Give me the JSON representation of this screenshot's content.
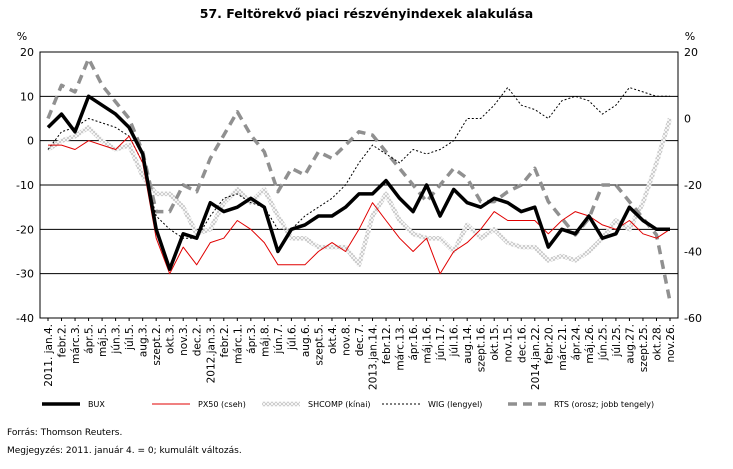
{
  "figure": {
    "title": "57. Feltörekvő piaci részvényindexek alakulása",
    "source": "Forrás: Thomson Reuters.",
    "note": "Megjegyzés: 2011. január 4. = 0; kumulált változás."
  },
  "chart_data": {
    "type": "line",
    "left_axis": {
      "unit": "%",
      "ylim": [
        -40,
        20
      ],
      "ticks": [
        20,
        10,
        0,
        -10,
        -20,
        -30,
        -40
      ]
    },
    "right_axis": {
      "unit": "%",
      "ylim": [
        -60,
        20
      ],
      "ticks": [
        20,
        0,
        -20,
        -40,
        -60
      ]
    },
    "grid": true,
    "legend_position": "bottom",
    "x_labels": [
      "2011. jan.4.",
      "febr.2.",
      "márc.3.",
      "ápr.5.",
      "máj.5.",
      "jún.3.",
      "júl.5.",
      "aug.3.",
      "szept.2.",
      "okt.3.",
      "nov.3.",
      "dec.2.",
      "2012.jan.3.",
      "febr.2.",
      "márc.1.",
      "ápr.3.",
      "máj.8.",
      "jún.7.",
      "júl.6.",
      "aug.6.",
      "szept.5.",
      "okt.4.",
      "nov.8.",
      "dec.7.",
      "2013.jan.14.",
      "febr.12.",
      "márc.13.",
      "ápr.16.",
      "máj.16.",
      "jún.17.",
      "júl.16.",
      "aug.14.",
      "szept.16.",
      "okt.15.",
      "nov.15.",
      "dec.16.",
      "2014.jan.22.",
      "febr.20.",
      "márc.21.",
      "ápr.24.",
      "máj.26.",
      "jún.25.",
      "júl.25.",
      "aug.27.",
      "szept.25.",
      "okt.28.",
      "nov.26."
    ],
    "series": [
      {
        "name": "BUX",
        "axis": "left",
        "color": "#000000",
        "style": "thick",
        "values": [
          3,
          6,
          2,
          10,
          8,
          6,
          3,
          -3,
          -20,
          -29,
          -21,
          -22,
          -14,
          -16,
          -15,
          -13,
          -15,
          -25,
          -20,
          -19,
          -17,
          -17,
          -15,
          -12,
          -12,
          -9,
          -13,
          -16,
          -10,
          -17,
          -11,
          -14,
          -15,
          -13,
          -14,
          -16,
          -15,
          -24,
          -20,
          -21,
          -17,
          -22,
          -21,
          -15,
          -18,
          -20,
          -20
        ]
      },
      {
        "name": "PX50 (cseh)",
        "axis": "left",
        "color": "#e00000",
        "style": "thin",
        "values": [
          -1,
          -1,
          -2,
          0,
          -1,
          -2,
          1,
          -5,
          -22,
          -30,
          -24,
          -28,
          -23,
          -22,
          -18,
          -20,
          -23,
          -28,
          -28,
          -28,
          -25,
          -23,
          -25,
          -20,
          -14,
          -18,
          -22,
          -25,
          -22,
          -30,
          -25,
          -23,
          -20,
          -16,
          -18,
          -18,
          -18,
          -21,
          -18,
          -16,
          -17,
          -19,
          -20,
          -18,
          -21,
          -22,
          -20
        ]
      },
      {
        "name": "SHCOMP (kínai)",
        "axis": "left",
        "color": "#a8a8a8",
        "style": "pattern",
        "values": [
          -2,
          0,
          1,
          3,
          0,
          -2,
          -1,
          -8,
          -12,
          -12,
          -15,
          -21,
          -20,
          -14,
          -11,
          -14,
          -11,
          -17,
          -22,
          -22,
          -24,
          -24,
          -24,
          -28,
          -17,
          -12,
          -18,
          -21,
          -22,
          -22,
          -25,
          -19,
          -22,
          -20,
          -23,
          -24,
          -24,
          -27,
          -26,
          -27,
          -25,
          -22,
          -18,
          -20,
          -14,
          -5,
          5
        ]
      },
      {
        "name": "WIG (lengyel)",
        "axis": "left",
        "color": "#000000",
        "style": "dotted",
        "values": [
          -2,
          2,
          3,
          5,
          4,
          3,
          1,
          -5,
          -17,
          -20,
          -22,
          -22,
          -17,
          -13,
          -12,
          -14,
          -15,
          -20,
          -20,
          -17,
          -15,
          -13,
          -10,
          -5,
          -1,
          -3,
          -5,
          -2,
          -3,
          -2,
          0,
          5,
          5,
          8,
          12,
          8,
          7,
          5,
          9,
          10,
          9,
          6,
          8,
          12,
          11,
          10,
          10
        ]
      },
      {
        "name": "RTS (orosz; jobb tengely)",
        "axis": "right",
        "color": "#909090",
        "style": "dashed",
        "values": [
          0,
          10,
          8,
          18,
          10,
          5,
          0,
          -10,
          -28,
          -28,
          -20,
          -22,
          -12,
          -5,
          2,
          -5,
          -10,
          -22,
          -15,
          -17,
          -10,
          -12,
          -8,
          -4,
          -5,
          -10,
          -15,
          -20,
          -25,
          -20,
          -15,
          -18,
          -25,
          -25,
          -22,
          -20,
          -15,
          -25,
          -30,
          -35,
          -30,
          -20,
          -20,
          -25,
          -30,
          -35,
          -55
        ]
      }
    ]
  }
}
